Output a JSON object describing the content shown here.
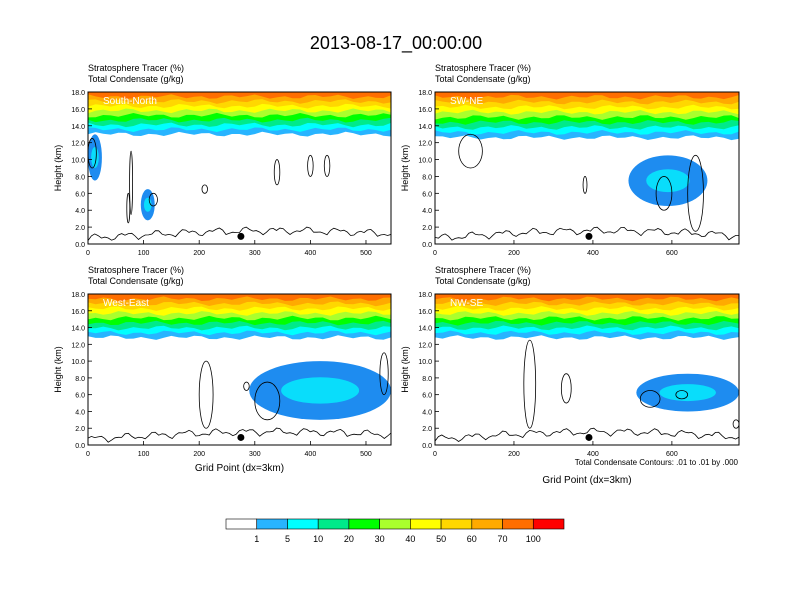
{
  "figure": {
    "title": "2013-08-17_00:00:00",
    "contour_note": "Total Condensate Contours: .01 to .01 by .000",
    "xaxis_label": "Grid Point (dx=3km)"
  },
  "chart_data": [
    {
      "type": "heatmap",
      "panel_label": "South-North",
      "title_lines": [
        "Stratosphere Tracer   (%)",
        "Total Condensate   (g/kg)"
      ],
      "ylabel": "Height (km)",
      "xlabel": "",
      "xlim": [
        0,
        545
      ],
      "ylim": [
        0,
        18
      ],
      "xticks": [
        0,
        100,
        200,
        300,
        400,
        500
      ],
      "yticks": [
        0.0,
        2.0,
        4.0,
        6.0,
        8.0,
        10.0,
        12.0,
        14.0,
        16.0,
        18.0
      ],
      "tracer_base_km": 13.0,
      "blue_features": [
        {
          "x": [
            0,
            25
          ],
          "y": [
            7.5,
            13.0
          ]
        },
        {
          "x": [
            95,
            120
          ],
          "y": [
            2.8,
            6.5
          ]
        }
      ],
      "condensate_contours": [
        {
          "x": [
            0,
            15
          ],
          "y": [
            9,
            12.5
          ]
        },
        {
          "x": [
            70,
            75
          ],
          "y": [
            2.5,
            6.0
          ]
        },
        {
          "x": [
            75,
            80
          ],
          "y": [
            3.5,
            11.0
          ]
        },
        {
          "x": [
            110,
            125
          ],
          "y": [
            4.5,
            6.0
          ]
        },
        {
          "x": [
            205,
            215
          ],
          "y": [
            6.0,
            7.0
          ]
        },
        {
          "x": [
            335,
            345
          ],
          "y": [
            7.0,
            10.0
          ]
        },
        {
          "x": [
            395,
            405
          ],
          "y": [
            8.0,
            10.5
          ]
        },
        {
          "x": [
            425,
            435
          ],
          "y": [
            8.0,
            10.5
          ]
        }
      ],
      "marker_x": 275
    },
    {
      "type": "heatmap",
      "panel_label": "SW-NE",
      "title_lines": [
        "Stratosphere Tracer   (%)",
        "Total Condensate   (g/kg)"
      ],
      "ylabel": "Height (km)",
      "xlabel": "",
      "xlim": [
        0,
        770
      ],
      "ylim": [
        0,
        18
      ],
      "xticks": [
        0,
        200,
        400,
        600
      ],
      "yticks": [
        0.0,
        2.0,
        4.0,
        6.0,
        8.0,
        10.0,
        12.0,
        14.0,
        16.0,
        18.0
      ],
      "tracer_base_km": 12.6,
      "blue_features": [
        {
          "x": [
            490,
            690
          ],
          "y": [
            4.5,
            10.5
          ]
        }
      ],
      "condensate_contours": [
        {
          "x": [
            60,
            120
          ],
          "y": [
            9.0,
            13.0
          ]
        },
        {
          "x": [
            375,
            385
          ],
          "y": [
            6.0,
            8.0
          ]
        },
        {
          "x": [
            560,
            600
          ],
          "y": [
            4.0,
            8.0
          ]
        },
        {
          "x": [
            640,
            680
          ],
          "y": [
            1.5,
            10.5
          ]
        }
      ],
      "marker_x": 390
    },
    {
      "type": "heatmap",
      "panel_label": "West-East",
      "title_lines": [
        "Stratosphere Tracer   (%)",
        "Total Condensate   (g/kg)"
      ],
      "ylabel": "Height (km)",
      "xlabel": "Grid Point (dx=3km)",
      "xlim": [
        0,
        545
      ],
      "ylim": [
        0,
        18
      ],
      "xticks": [
        0,
        100,
        200,
        300,
        400,
        500
      ],
      "yticks": [
        0.0,
        2.0,
        4.0,
        6.0,
        8.0,
        10.0,
        12.0,
        14.0,
        16.0,
        18.0
      ],
      "tracer_base_km": 12.8,
      "blue_features": [
        {
          "x": [
            290,
            545
          ],
          "y": [
            3.0,
            10.0
          ]
        }
      ],
      "condensate_contours": [
        {
          "x": [
            200,
            225
          ],
          "y": [
            2.0,
            10.0
          ]
        },
        {
          "x": [
            280,
            290
          ],
          "y": [
            6.5,
            7.5
          ]
        },
        {
          "x": [
            300,
            345
          ],
          "y": [
            3.0,
            7.5
          ]
        },
        {
          "x": [
            525,
            540
          ],
          "y": [
            6.0,
            11.0
          ]
        }
      ],
      "marker_x": 275
    },
    {
      "type": "heatmap",
      "panel_label": "NW-SE",
      "title_lines": [
        "Stratosphere Tracer   (%)",
        "Total Condensate   (g/kg)"
      ],
      "ylabel": "Height (km)",
      "xlabel": "Grid Point (dx=3km)",
      "xlim": [
        0,
        770
      ],
      "ylim": [
        0,
        18
      ],
      "xticks": [
        0,
        200,
        400,
        600
      ],
      "yticks": [
        0.0,
        2.0,
        4.0,
        6.0,
        8.0,
        10.0,
        12.0,
        14.0,
        16.0,
        18.0
      ],
      "tracer_base_km": 12.8,
      "blue_features": [
        {
          "x": [
            510,
            770
          ],
          "y": [
            4.0,
            8.5
          ]
        }
      ],
      "condensate_contours": [
        {
          "x": [
            225,
            255
          ],
          "y": [
            2.0,
            12.5
          ]
        },
        {
          "x": [
            320,
            345
          ],
          "y": [
            5.0,
            8.5
          ]
        },
        {
          "x": [
            520,
            570
          ],
          "y": [
            4.5,
            6.5
          ]
        },
        {
          "x": [
            610,
            640
          ],
          "y": [
            5.5,
            6.5
          ]
        },
        {
          "x": [
            755,
            770
          ],
          "y": [
            2.0,
            3.0
          ]
        }
      ],
      "marker_x": 390
    }
  ],
  "colorbar": {
    "ticks": [
      "1",
      "5",
      "10",
      "20",
      "30",
      "40",
      "50",
      "60",
      "70",
      "100"
    ],
    "colors": [
      "#ffffff",
      "#1e8cf0",
      "#28b4ff",
      "#00ffff",
      "#00ea8a",
      "#00ff00",
      "#aaff2d",
      "#ffff00",
      "#ffd700",
      "#ffaa00",
      "#ff6e00",
      "#ff0000"
    ]
  }
}
